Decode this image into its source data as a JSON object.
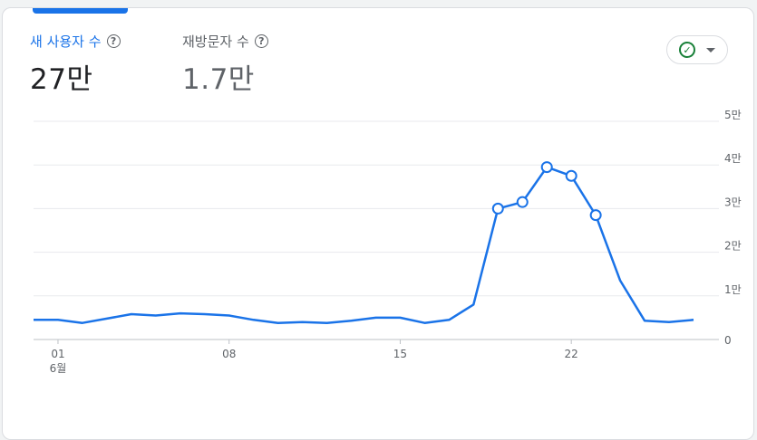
{
  "metrics": [
    {
      "label": "새 사용자 수",
      "value": "27만",
      "active": true
    },
    {
      "label": "재방문자 수",
      "value": "1.7만",
      "active": false
    }
  ],
  "help_icon": "help-circle-icon",
  "compare_button": {
    "icon": "check-circle-icon",
    "menu_icon": "caret-down-icon"
  },
  "colors": {
    "accent": "#1a73e8",
    "line": "#1a73e8",
    "check": "#188038",
    "grid": "#e8eaed",
    "text_muted": "#5f6368"
  },
  "chart_data": {
    "type": "line",
    "series": [
      {
        "values": [
          4500,
          4500,
          3800,
          4800,
          5800,
          5500,
          6000,
          5800,
          5500,
          4500,
          3800,
          4000,
          3800,
          4300,
          5000,
          5000,
          3800,
          4500,
          8000,
          30000,
          31500,
          39500,
          37500,
          28500,
          13500,
          4300,
          4000,
          4500
        ],
        "markers": [
          19,
          20,
          21,
          22,
          23
        ]
      }
    ],
    "x_day_labels": [
      {
        "index": 1,
        "label": "01"
      },
      {
        "index": 8,
        "label": "08"
      },
      {
        "index": 15,
        "label": "15"
      },
      {
        "index": 22,
        "label": "22"
      }
    ],
    "x_month_label": {
      "index": 1,
      "label": "6월"
    },
    "y_ticks": [
      {
        "value": 0,
        "label": "0"
      },
      {
        "value": 10000,
        "label": "1만"
      },
      {
        "value": 20000,
        "label": "2만"
      },
      {
        "value": 30000,
        "label": "3만"
      },
      {
        "value": 40000,
        "label": "4만"
      },
      {
        "value": 50000,
        "label": "5만"
      }
    ],
    "ylim": [
      0,
      50000
    ],
    "grid": true
  }
}
